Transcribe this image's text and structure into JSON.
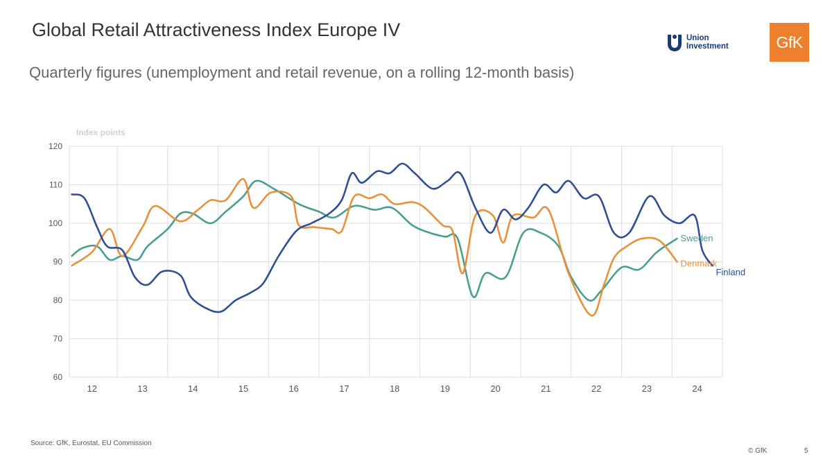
{
  "header": {
    "title": "Global Retail Attractiveness Index Europe IV",
    "subtitle": "Quarterly figures (unemployment and retail revenue, on a rolling 12-month basis)"
  },
  "logos": {
    "union_investment": {
      "line1": "Union",
      "line2": "Investment",
      "color": "#1a3a7a"
    },
    "gfk": {
      "text": "GfK",
      "color": "#ee7f2d"
    }
  },
  "footer": {
    "source": "Source: GfK, Eurostat, EU Commission",
    "copyright": "© GfK",
    "page_number": "5"
  },
  "chart_data": {
    "type": "line",
    "ylabel": "Index points",
    "ylim": [
      60,
      120
    ],
    "yticks": [
      60,
      70,
      80,
      90,
      100,
      110,
      120
    ],
    "categories": [
      "12",
      "13",
      "14",
      "15",
      "16",
      "17",
      "18",
      "19",
      "20",
      "21",
      "22",
      "23",
      "24"
    ],
    "xlim": [
      11.55,
      24.5
    ],
    "grid": true,
    "legend": "inline labels at line ends",
    "series": [
      {
        "name": "Sweden",
        "color": "#4a9e8e",
        "points": [
          [
            11.6,
            91.5
          ],
          [
            11.8,
            93.5
          ],
          [
            12.1,
            94
          ],
          [
            12.35,
            90.5
          ],
          [
            12.6,
            91.5
          ],
          [
            12.9,
            90.5
          ],
          [
            13.1,
            94
          ],
          [
            13.5,
            98.5
          ],
          [
            13.75,
            102.5
          ],
          [
            14.0,
            102.5
          ],
          [
            14.35,
            100
          ],
          [
            14.65,
            103
          ],
          [
            15.0,
            107
          ],
          [
            15.25,
            111
          ],
          [
            15.6,
            109
          ],
          [
            16.1,
            105
          ],
          [
            16.5,
            103
          ],
          [
            16.8,
            101.5
          ],
          [
            17.2,
            104.5
          ],
          [
            17.6,
            103.5
          ],
          [
            17.95,
            104
          ],
          [
            18.35,
            99.5
          ],
          [
            18.7,
            97.5
          ],
          [
            19.0,
            96.5
          ],
          [
            19.25,
            96
          ],
          [
            19.55,
            81
          ],
          [
            19.8,
            87
          ],
          [
            20.2,
            86
          ],
          [
            20.55,
            97.5
          ],
          [
            20.9,
            97.5
          ],
          [
            21.25,
            94
          ],
          [
            21.5,
            86
          ],
          [
            21.85,
            80
          ],
          [
            22.1,
            82.5
          ],
          [
            22.5,
            88.5
          ],
          [
            22.85,
            88
          ],
          [
            23.2,
            92.5
          ],
          [
            23.6,
            96
          ]
        ]
      },
      {
        "name": "Denmark",
        "color": "#e8913a",
        "points": [
          [
            11.6,
            89
          ],
          [
            12.0,
            92.5
          ],
          [
            12.35,
            98.5
          ],
          [
            12.6,
            91.5
          ],
          [
            13.0,
            99
          ],
          [
            13.25,
            104.5
          ],
          [
            13.75,
            100.5
          ],
          [
            14.1,
            103.5
          ],
          [
            14.35,
            106
          ],
          [
            14.65,
            106
          ],
          [
            15.0,
            111.5
          ],
          [
            15.2,
            104
          ],
          [
            15.55,
            108
          ],
          [
            15.95,
            107
          ],
          [
            16.1,
            99.5
          ],
          [
            16.4,
            99
          ],
          [
            16.75,
            98.5
          ],
          [
            16.95,
            98
          ],
          [
            17.2,
            107
          ],
          [
            17.5,
            106.5
          ],
          [
            17.75,
            107.5
          ],
          [
            18.0,
            105
          ],
          [
            18.35,
            105.5
          ],
          [
            18.6,
            104
          ],
          [
            18.95,
            99.5
          ],
          [
            19.15,
            98
          ],
          [
            19.35,
            87
          ],
          [
            19.6,
            102
          ],
          [
            19.95,
            102
          ],
          [
            20.15,
            95
          ],
          [
            20.35,
            102
          ],
          [
            20.75,
            101.5
          ],
          [
            21.05,
            103.5
          ],
          [
            21.45,
            87
          ],
          [
            21.9,
            76
          ],
          [
            22.15,
            84
          ],
          [
            22.35,
            91
          ],
          [
            22.6,
            94
          ],
          [
            22.9,
            96
          ],
          [
            23.25,
            95.5
          ],
          [
            23.6,
            90
          ]
        ]
      },
      {
        "name": "Finland",
        "color": "#2f4f95",
        "points": [
          [
            11.6,
            107.5
          ],
          [
            11.85,
            106.5
          ],
          [
            12.1,
            99
          ],
          [
            12.3,
            94
          ],
          [
            12.6,
            93
          ],
          [
            12.85,
            86
          ],
          [
            13.1,
            84
          ],
          [
            13.4,
            87.5
          ],
          [
            13.75,
            86.5
          ],
          [
            13.95,
            81
          ],
          [
            14.25,
            78
          ],
          [
            14.55,
            77
          ],
          [
            14.85,
            80
          ],
          [
            15.15,
            82
          ],
          [
            15.4,
            84.5
          ],
          [
            15.7,
            91.5
          ],
          [
            16.05,
            98
          ],
          [
            16.35,
            100
          ],
          [
            16.7,
            102.5
          ],
          [
            16.95,
            106
          ],
          [
            17.15,
            113
          ],
          [
            17.35,
            110.5
          ],
          [
            17.65,
            113.5
          ],
          [
            17.9,
            113
          ],
          [
            18.15,
            115.5
          ],
          [
            18.4,
            113
          ],
          [
            18.75,
            109
          ],
          [
            19.05,
            111
          ],
          [
            19.3,
            113
          ],
          [
            19.6,
            104
          ],
          [
            19.9,
            97.5
          ],
          [
            20.15,
            103.5
          ],
          [
            20.4,
            101
          ],
          [
            20.65,
            104
          ],
          [
            20.95,
            110
          ],
          [
            21.2,
            108
          ],
          [
            21.45,
            111
          ],
          [
            21.75,
            106.5
          ],
          [
            22.05,
            107
          ],
          [
            22.35,
            97.5
          ],
          [
            22.65,
            97.5
          ],
          [
            23.05,
            107
          ],
          [
            23.35,
            102
          ],
          [
            23.65,
            100
          ],
          [
            23.95,
            102
          ],
          [
            24.1,
            93
          ],
          [
            24.3,
            89
          ]
        ]
      }
    ]
  }
}
